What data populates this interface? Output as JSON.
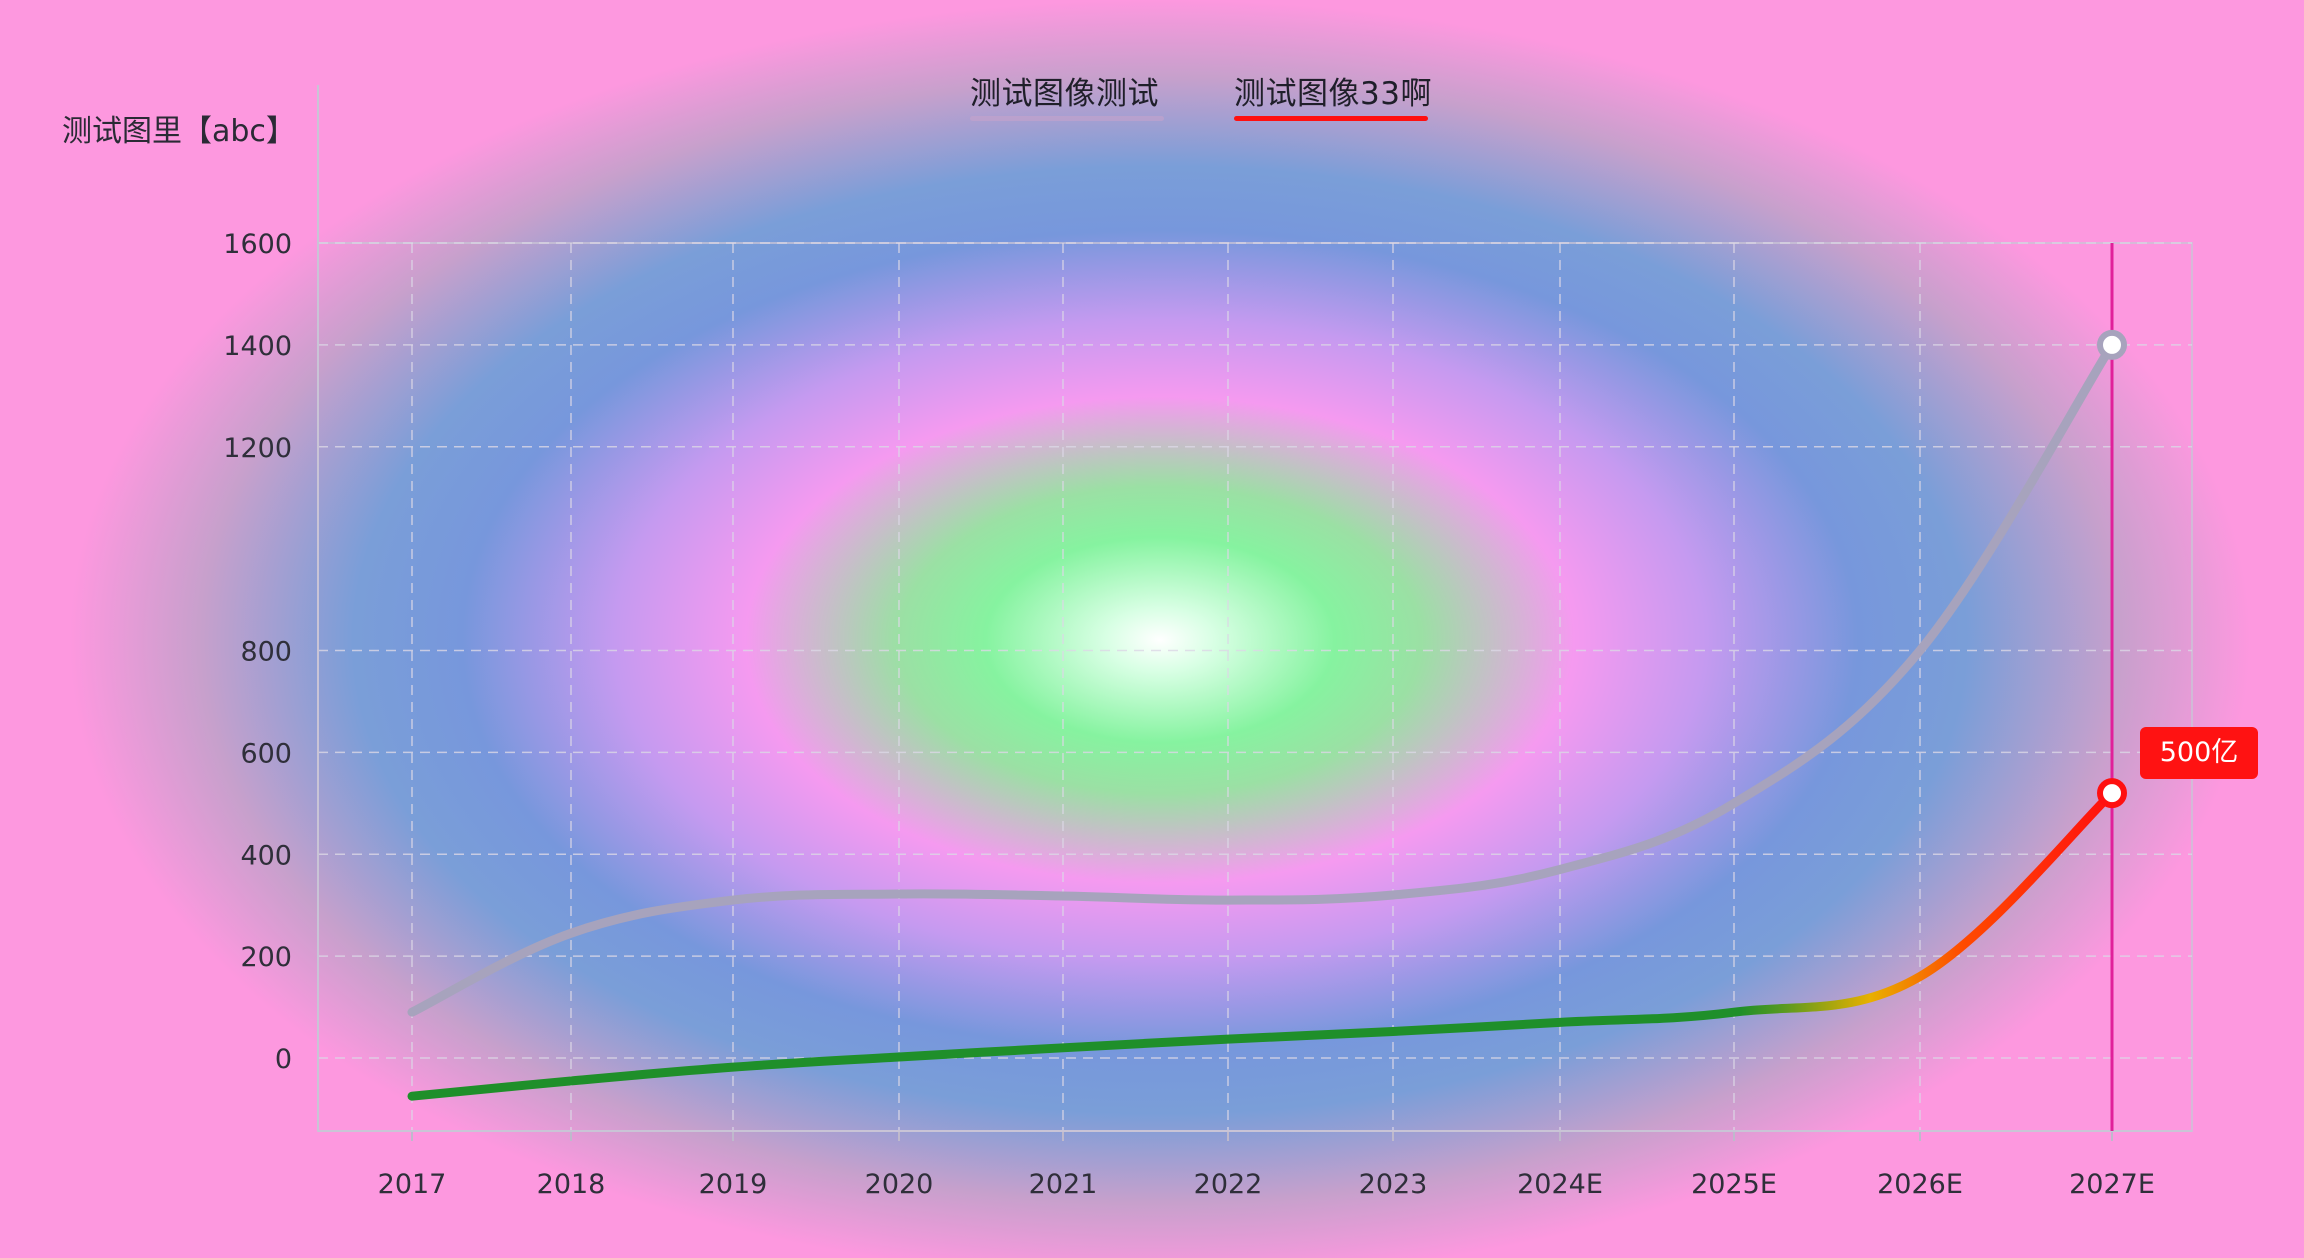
{
  "legend": {
    "items": [
      {
        "label": "测试图像测试",
        "color": "#a7a3bd"
      },
      {
        "label": "测试图像33啊",
        "color": "#ff1010"
      }
    ]
  },
  "tooltip": {
    "label": "500亿"
  },
  "chart_data": {
    "type": "line",
    "title": "",
    "ylabel": "测试图里【abc】",
    "xlabel": "",
    "categories": [
      "2017",
      "2018",
      "2019",
      "2020",
      "2021",
      "2022",
      "2023",
      "2024E",
      "2025E",
      "2026E",
      "2027E"
    ],
    "yticks": [
      0,
      200,
      400,
      600,
      800,
      1200,
      1400,
      1600
    ],
    "ylim": [
      -125,
      1600
    ],
    "grid": true,
    "legend_position": "top-center",
    "highlight_category": "2027E",
    "series": [
      {
        "name": "测试图像测试",
        "color": "#a7a3bd",
        "values": [
          90,
          245,
          310,
          322,
          318,
          310,
          320,
          370,
          500,
          800,
          1400
        ]
      },
      {
        "name": "测试图像33啊",
        "color": "#ff1010",
        "colorStops": [
          "#1f8f2a",
          "#1f8f2a",
          "#e8b000",
          "#ff2a00"
        ],
        "values": [
          -75,
          -45,
          -18,
          2,
          20,
          37,
          52,
          70,
          90,
          160,
          520
        ]
      }
    ]
  }
}
